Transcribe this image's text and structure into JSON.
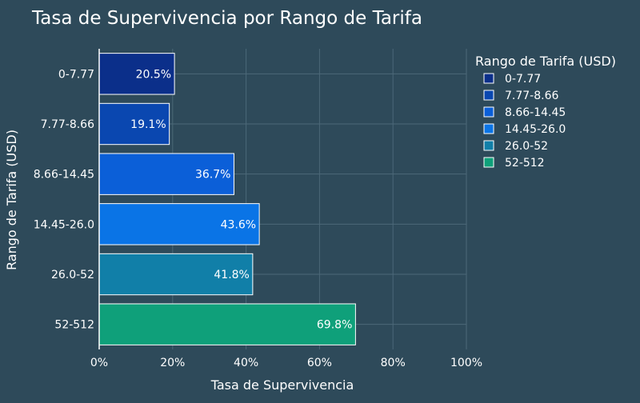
{
  "chart_data": {
    "type": "bar",
    "orientation": "horizontal",
    "title": "Tasa de Supervivencia por Rango de Tarifa",
    "xlabel": "Tasa de Supervivencia",
    "ylabel": "Rango de Tarifa (USD)",
    "xlim": [
      0,
      100
    ],
    "x_ticks": [
      0,
      20,
      40,
      60,
      80,
      100
    ],
    "x_tick_suffix": "%",
    "grid": true,
    "legend": {
      "title": "Rango de Tarifa (USD)",
      "placement": "top-right"
    },
    "categories": [
      "0-7.77",
      "7.77-8.66",
      "8.66-14.45",
      "14.45-26.0",
      "26.0-52",
      "52-512"
    ],
    "values": [
      20.5,
      19.1,
      36.7,
      43.6,
      41.8,
      69.8
    ],
    "data_labels": [
      "20.5%",
      "19.1%",
      "36.7%",
      "43.6%",
      "41.8%",
      "69.8%"
    ],
    "colors": [
      "#0b2f8a",
      "#0a47b0",
      "#0b5fd8",
      "#0a74e6",
      "#117fa8",
      "#0fa07a"
    ]
  },
  "theme": {
    "background": "#2e4a5a",
    "grid_color": "#4c6878",
    "text_color": "#ffffff",
    "bar_outline": "#ffffff"
  }
}
